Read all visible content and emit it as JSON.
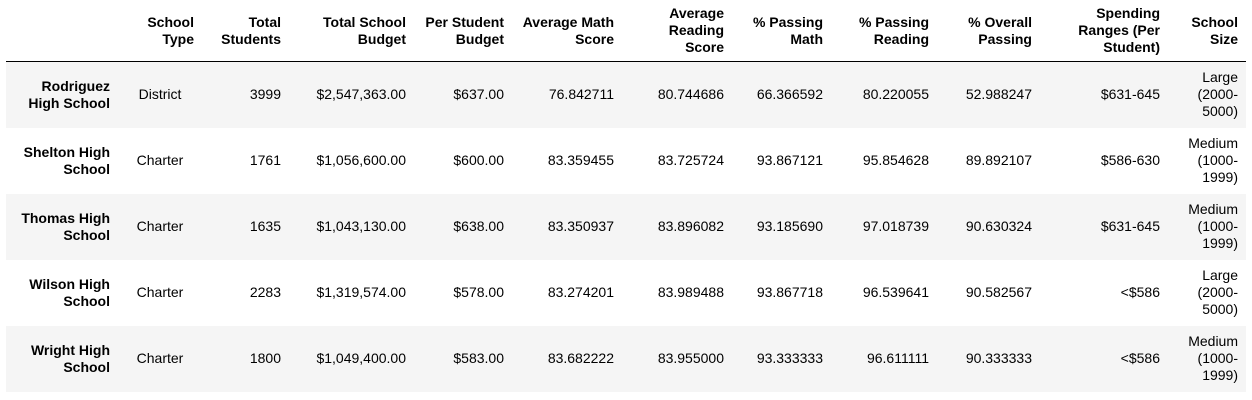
{
  "table": {
    "columns": [
      "",
      "School Type",
      "Total Students",
      "Total School Budget",
      "Per Student Budget",
      "Average Math Score",
      "Average Reading Score",
      "% Passing Math",
      "% Passing Reading",
      "% Overall Passing",
      "Spending Ranges (Per Student)",
      "School Size"
    ],
    "rows": [
      {
        "school": "Rodriguez High School",
        "type": "District",
        "students": "3999",
        "budget": "$2,547,363.00",
        "per_student": "$637.00",
        "math": "76.842711",
        "reading": "80.744686",
        "pass_math": "66.366592",
        "pass_reading": "80.220055",
        "overall": "52.988247",
        "spending": "$631-645",
        "size": "Large (2000-5000)"
      },
      {
        "school": "Shelton High School",
        "type": "Charter",
        "students": "1761",
        "budget": "$1,056,600.00",
        "per_student": "$600.00",
        "math": "83.359455",
        "reading": "83.725724",
        "pass_math": "93.867121",
        "pass_reading": "95.854628",
        "overall": "89.892107",
        "spending": "$586-630",
        "size": "Medium (1000-1999)"
      },
      {
        "school": "Thomas High School",
        "type": "Charter",
        "students": "1635",
        "budget": "$1,043,130.00",
        "per_student": "$638.00",
        "math": "83.350937",
        "reading": "83.896082",
        "pass_math": "93.185690",
        "pass_reading": "97.018739",
        "overall": "90.630324",
        "spending": "$631-645",
        "size": "Medium (1000-1999)"
      },
      {
        "school": "Wilson High School",
        "type": "Charter",
        "students": "2283",
        "budget": "$1,319,574.00",
        "per_student": "$578.00",
        "math": "83.274201",
        "reading": "83.989488",
        "pass_math": "93.867718",
        "pass_reading": "96.539641",
        "overall": "90.582567",
        "spending": "<$586",
        "size": "Large (2000-5000)"
      },
      {
        "school": "Wright High School",
        "type": "Charter",
        "students": "1800",
        "budget": "$1,049,400.00",
        "per_student": "$583.00",
        "math": "83.682222",
        "reading": "83.955000",
        "pass_math": "93.333333",
        "pass_reading": "96.611111",
        "overall": "90.333333",
        "spending": "<$586",
        "size": "Medium (1000-1999)"
      }
    ]
  }
}
